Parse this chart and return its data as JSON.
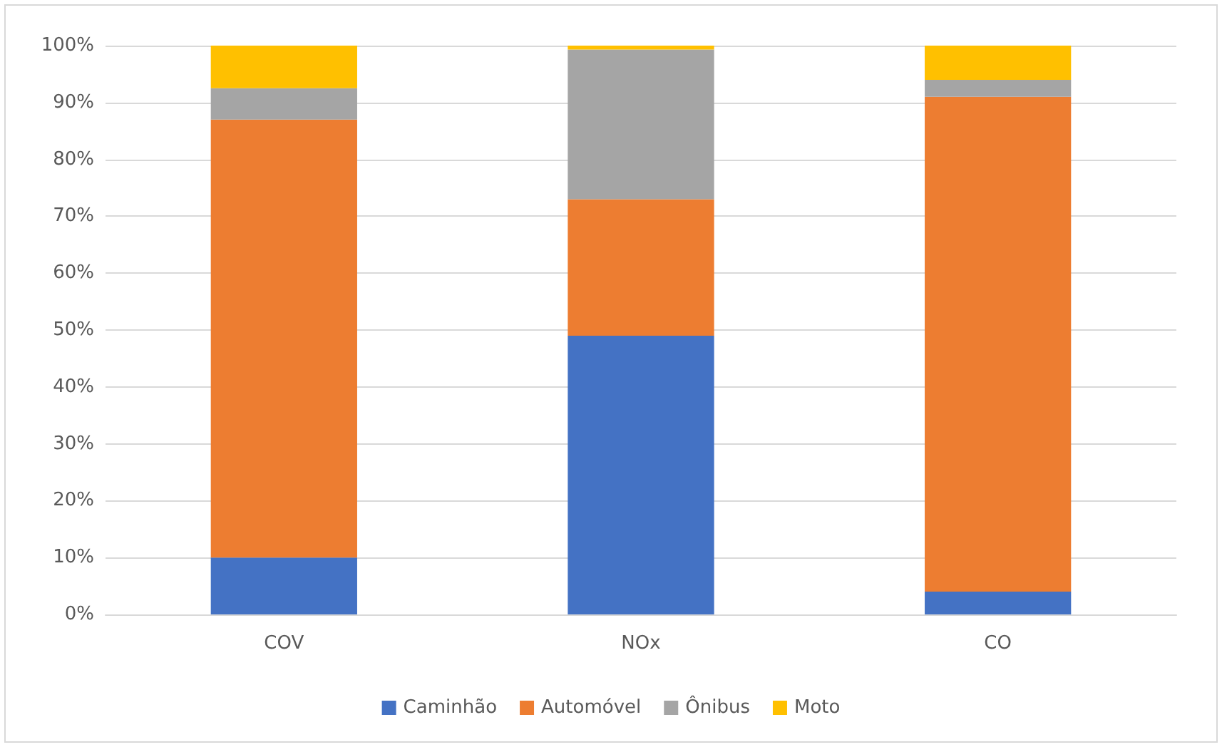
{
  "chart_data": {
    "type": "bar",
    "stacked": true,
    "categories": [
      "COV",
      "NOx",
      "CO"
    ],
    "series": [
      {
        "name": "Caminhão",
        "color": "#4472c4",
        "values": [
          10,
          49,
          4
        ]
      },
      {
        "name": "Automóvel",
        "color": "#ed7d31",
        "values": [
          77,
          24,
          87
        ]
      },
      {
        "name": "Ônibus",
        "color": "#a5a5a5",
        "values": [
          5.5,
          26.3,
          3
        ]
      },
      {
        "name": "Moto",
        "color": "#ffc000",
        "values": [
          7.5,
          0.7,
          6
        ]
      }
    ],
    "ylim": [
      0,
      100
    ],
    "yticks": [
      {
        "value": 0,
        "label": "0%"
      },
      {
        "value": 10,
        "label": "10%"
      },
      {
        "value": 20,
        "label": "20%"
      },
      {
        "value": 30,
        "label": "30%"
      },
      {
        "value": 40,
        "label": "40%"
      },
      {
        "value": 50,
        "label": "50%"
      },
      {
        "value": 60,
        "label": "60%"
      },
      {
        "value": 70,
        "label": "70%"
      },
      {
        "value": 80,
        "label": "80%"
      },
      {
        "value": 90,
        "label": "90%"
      },
      {
        "value": 100,
        "label": "100%"
      }
    ],
    "grid": "y",
    "legend": "bottom"
  }
}
